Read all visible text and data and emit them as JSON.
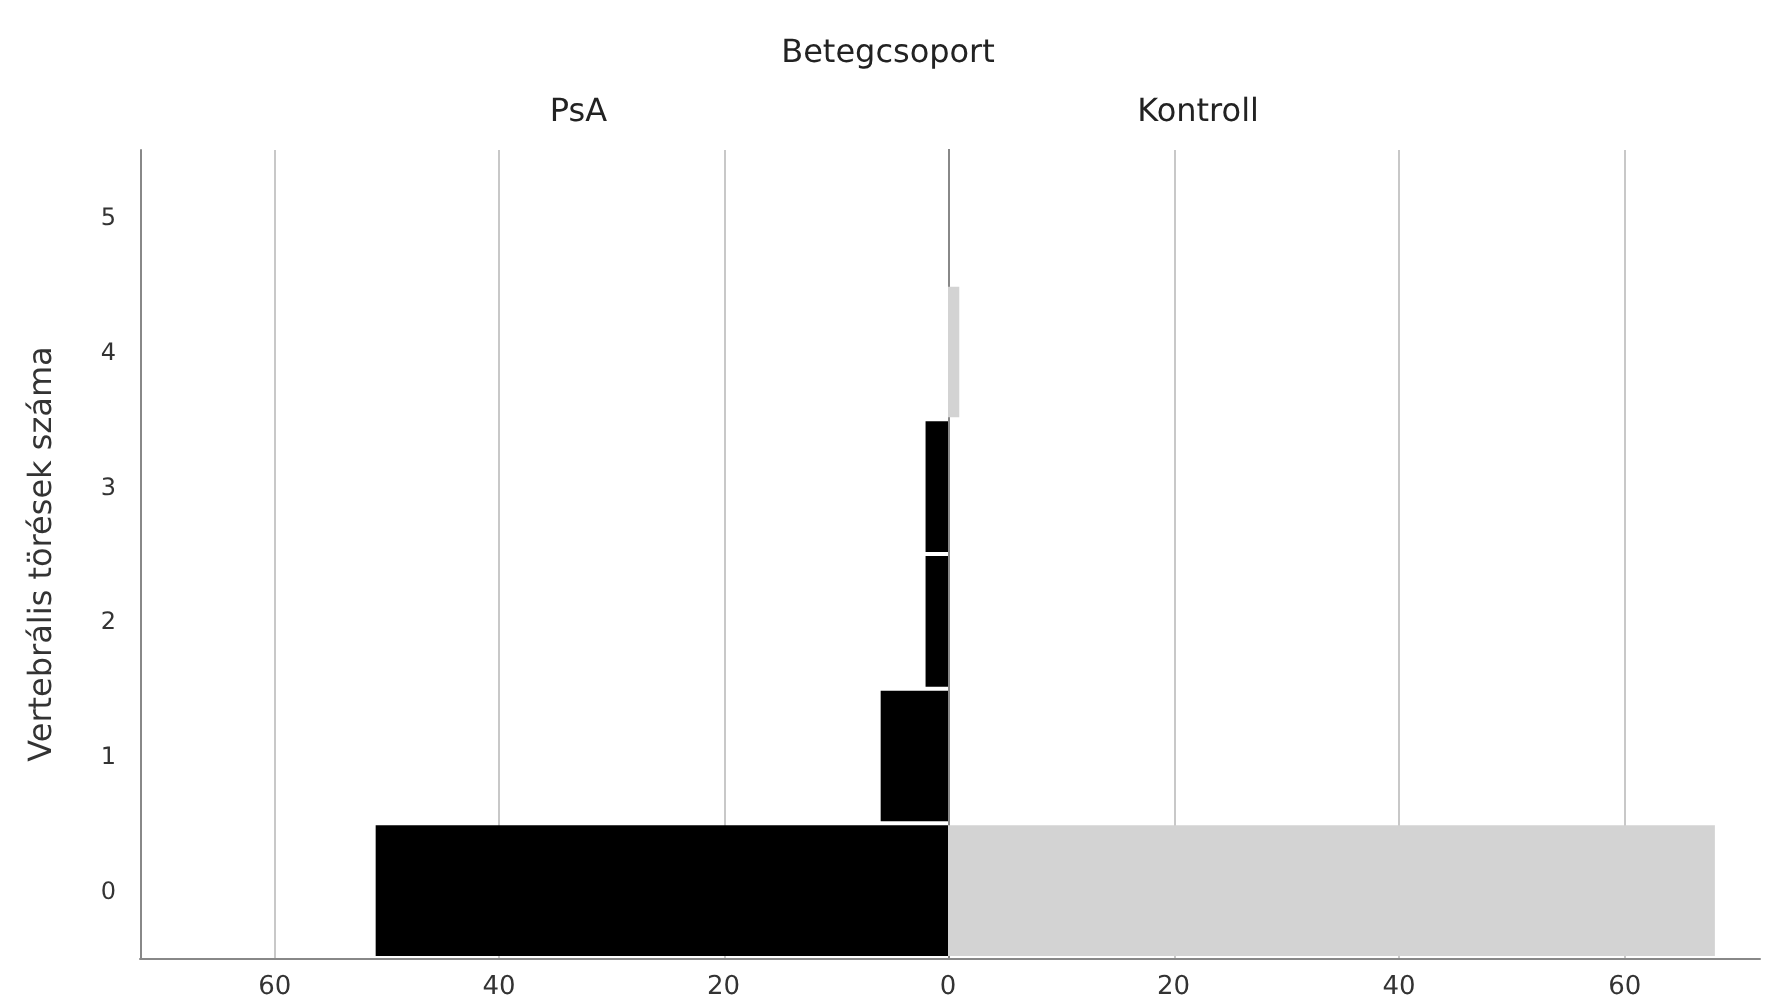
{
  "chart_data": [
    {
      "type": "bar",
      "orientation": "horizontal",
      "title": "PsA",
      "ylabel": "Vertebrális törések száma",
      "annotations": [
        "Betegcsoport"
      ],
      "categories": [
        "5",
        "4",
        "3",
        "2",
        "1",
        "0"
      ],
      "values": [
        0,
        0,
        2,
        2,
        6,
        51
      ],
      "color": "#000000",
      "xlim": [
        72,
        0
      ],
      "xticks": [
        60,
        40,
        20,
        0
      ],
      "grid": "x"
    },
    {
      "type": "bar",
      "orientation": "horizontal",
      "title": "Kontroll",
      "categories": [
        "5",
        "4",
        "3",
        "2",
        "1",
        "0"
      ],
      "values": [
        0,
        1,
        0,
        0,
        0,
        68
      ],
      "color": "#d3d3d3",
      "xlim": [
        0,
        72
      ],
      "xticks": [
        {
          "value": 0,
          "label": null
        },
        20,
        40,
        60
      ],
      "grid": "x",
      "tick_labels": "x"
    }
  ]
}
